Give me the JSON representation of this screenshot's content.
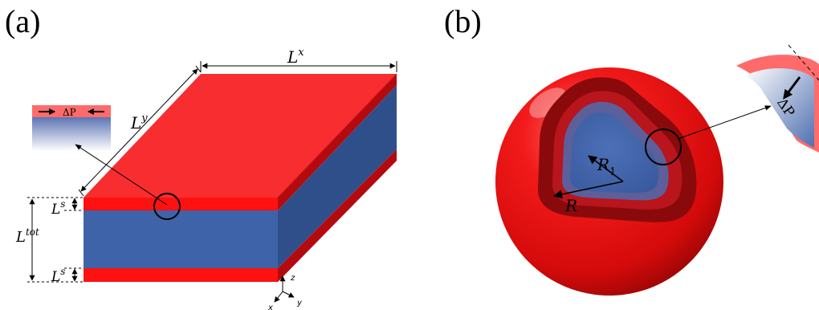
{
  "panels": {
    "a": {
      "label": "(a)",
      "dim_lx": "L",
      "dim_lx_sup": "x",
      "dim_ly": "L",
      "dim_ly_sup": "y",
      "dim_ls_top": "L",
      "dim_ls_top_sup": "s",
      "dim_ls_bottom": "L",
      "dim_ls_bottom_sup": "s",
      "dim_ltot": "L",
      "dim_ltot_sup": "tot",
      "inset_label": "ΔP",
      "axes": {
        "z": "z",
        "x": "x",
        "y": "y"
      }
    },
    "b": {
      "label": "(b)",
      "radius_inner": "R",
      "radius_inner_sub": "1",
      "radius_outer": "R",
      "inset_label": "ΔP"
    }
  },
  "colors": {
    "shell_red": "#e8101a",
    "shell_red_top": "#f2282c",
    "core_blue": "#3f63a8",
    "core_blue_dark": "#2f4f8a",
    "inset_pink": "#ff6b6b",
    "inset_gradient_end": "#ffffff"
  }
}
